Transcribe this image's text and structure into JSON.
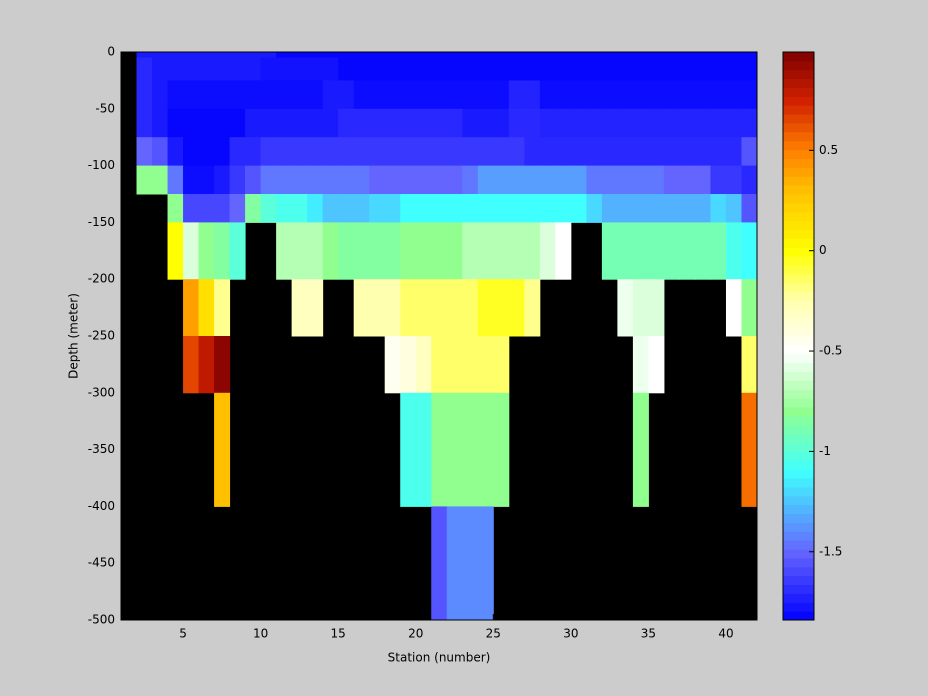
{
  "chart_data": {
    "type": "heatmap",
    "xlabel": "Station (number)",
    "ylabel": "Depth (meter)",
    "xlim": [
      1,
      42
    ],
    "ylim": [
      -500,
      0
    ],
    "xticks": [
      5,
      10,
      15,
      20,
      25,
      30,
      35,
      40
    ],
    "yticks": [
      0,
      -50,
      -100,
      -150,
      -200,
      -250,
      -300,
      -350,
      -400,
      -450,
      -500
    ],
    "x_edges": [
      2,
      3,
      4,
      5,
      6,
      7,
      8,
      9,
      10,
      11,
      12,
      13,
      14,
      15,
      16,
      17,
      18,
      19,
      20,
      21,
      22,
      23,
      24,
      25,
      26,
      27,
      28,
      29,
      30,
      31,
      32,
      33,
      34,
      35,
      36,
      37,
      38,
      39,
      40,
      41,
      42
    ],
    "y_edges": [
      0,
      -5,
      -25,
      -50,
      -75,
      -100,
      -125,
      -150,
      -200,
      -250,
      -300,
      -400,
      -500
    ],
    "background": "#000000",
    "clim": [
      -1.84,
      0.99
    ],
    "colorbar_ticks": [
      0.5,
      0,
      -0.5,
      -1,
      -1.5
    ],
    "colormap": [
      {
        "value": -1.84,
        "color": "#0000ff"
      },
      {
        "value": -1.5,
        "color": "#6464ff"
      },
      {
        "value": -1.1,
        "color": "#40ffff"
      },
      {
        "value": -0.8,
        "color": "#90ff90"
      },
      {
        "value": -0.5,
        "color": "#ffffff"
      },
      {
        "value": -0.25,
        "color": "#ffffb0"
      },
      {
        "value": 0,
        "color": "#ffff00"
      },
      {
        "value": 0.3,
        "color": "#ffc000"
      },
      {
        "value": 0.5,
        "color": "#ff8000"
      },
      {
        "value": 0.75,
        "color": "#d02000"
      },
      {
        "value": 0.99,
        "color": "#800000"
      }
    ],
    "values": [
      [
        -1.75,
        -1.75,
        -1.75,
        -1.75,
        -1.75,
        -1.75,
        -1.75,
        -1.75,
        -1.75,
        -1.82,
        -1.82,
        -1.82,
        -1.82,
        -1.82,
        -1.82,
        -1.82,
        -1.82,
        -1.82,
        -1.82,
        -1.82,
        -1.82,
        -1.82,
        -1.82,
        -1.82,
        -1.82,
        -1.82,
        -1.82,
        -1.82,
        -1.82,
        -1.82,
        -1.82,
        -1.82,
        -1.82,
        -1.82,
        -1.82,
        -1.82,
        -1.82,
        -1.82,
        -1.82,
        -1.82
      ],
      [
        -1.7,
        -1.75,
        -1.75,
        -1.75,
        -1.75,
        -1.75,
        -1.75,
        -1.75,
        -1.78,
        -1.78,
        -1.78,
        -1.78,
        -1.78,
        -1.82,
        -1.82,
        -1.82,
        -1.82,
        -1.82,
        -1.82,
        -1.82,
        -1.82,
        -1.82,
        -1.82,
        -1.82,
        -1.82,
        -1.82,
        -1.82,
        -1.82,
        -1.82,
        -1.82,
        -1.82,
        -1.82,
        -1.82,
        -1.82,
        -1.82,
        -1.82,
        -1.82,
        -1.82,
        -1.82,
        -1.82
      ],
      [
        -1.7,
        -1.75,
        -1.8,
        -1.8,
        -1.8,
        -1.8,
        -1.8,
        -1.8,
        -1.8,
        -1.8,
        -1.8,
        -1.8,
        -1.75,
        -1.75,
        -1.8,
        -1.8,
        -1.8,
        -1.8,
        -1.8,
        -1.8,
        -1.8,
        -1.8,
        -1.8,
        -1.8,
        -1.72,
        -1.72,
        -1.8,
        -1.8,
        -1.8,
        -1.8,
        -1.8,
        -1.8,
        -1.8,
        -1.8,
        -1.8,
        -1.8,
        -1.8,
        -1.8,
        -1.8,
        -1.8
      ],
      [
        -1.7,
        -1.75,
        -1.82,
        -1.82,
        -1.82,
        -1.82,
        -1.82,
        -1.75,
        -1.75,
        -1.75,
        -1.75,
        -1.75,
        -1.75,
        -1.7,
        -1.7,
        -1.7,
        -1.7,
        -1.7,
        -1.7,
        -1.7,
        -1.7,
        -1.75,
        -1.75,
        -1.75,
        -1.7,
        -1.7,
        -1.72,
        -1.72,
        -1.72,
        -1.72,
        -1.72,
        -1.72,
        -1.72,
        -1.72,
        -1.72,
        -1.72,
        -1.72,
        -1.72,
        -1.72,
        -1.72
      ],
      [
        -1.5,
        -1.55,
        -1.75,
        -1.82,
        -1.82,
        -1.82,
        -1.7,
        -1.7,
        -1.65,
        -1.65,
        -1.65,
        -1.65,
        -1.65,
        -1.65,
        -1.65,
        -1.65,
        -1.65,
        -1.65,
        -1.65,
        -1.65,
        -1.65,
        -1.65,
        -1.65,
        -1.65,
        -1.65,
        -1.7,
        -1.7,
        -1.7,
        -1.7,
        -1.7,
        -1.7,
        -1.7,
        -1.7,
        -1.7,
        -1.7,
        -1.7,
        -1.7,
        -1.7,
        -1.7,
        -1.55
      ],
      [
        -0.8,
        -0.8,
        -1.45,
        -1.8,
        -1.8,
        -1.75,
        -1.65,
        -1.55,
        -1.45,
        -1.45,
        -1.45,
        -1.45,
        -1.45,
        -1.45,
        -1.45,
        -1.5,
        -1.5,
        -1.5,
        -1.5,
        -1.5,
        -1.5,
        -1.45,
        -1.35,
        -1.35,
        -1.35,
        -1.35,
        -1.35,
        -1.35,
        -1.35,
        -1.45,
        -1.45,
        -1.45,
        -1.45,
        -1.45,
        -1.5,
        -1.5,
        -1.5,
        -1.65,
        -1.65,
        -1.7
      ],
      [
        null,
        null,
        -0.8,
        -1.6,
        -1.6,
        -1.6,
        -1.5,
        -0.85,
        -1.0,
        -1.05,
        -1.05,
        -1.15,
        -1.25,
        -1.25,
        -1.25,
        -1.2,
        -1.2,
        -1.1,
        -1.1,
        -1.1,
        -1.1,
        -1.1,
        -1.1,
        -1.1,
        -1.1,
        -1.1,
        -1.1,
        -1.1,
        -1.1,
        -1.2,
        -1.3,
        -1.3,
        -1.3,
        -1.3,
        -1.3,
        -1.3,
        -1.3,
        -1.2,
        -1.25,
        -1.55
      ],
      [
        null,
        null,
        0.0,
        -0.6,
        -0.8,
        -0.85,
        -1.0,
        null,
        null,
        -0.7,
        -0.7,
        -0.7,
        -0.8,
        -0.85,
        -0.85,
        -0.85,
        -0.85,
        -0.8,
        -0.8,
        -0.8,
        -0.8,
        -0.7,
        -0.7,
        -0.7,
        -0.7,
        -0.7,
        -0.6,
        -0.5,
        null,
        null,
        -0.9,
        -0.9,
        -0.9,
        -0.9,
        -0.9,
        -0.9,
        -0.9,
        -0.9,
        -1.05,
        -1.1
      ],
      [
        null,
        null,
        null,
        0.4,
        0.15,
        -0.2,
        null,
        null,
        null,
        null,
        -0.3,
        -0.3,
        null,
        null,
        -0.25,
        -0.25,
        -0.25,
        -0.15,
        -0.15,
        -0.15,
        -0.15,
        -0.15,
        -0.05,
        -0.05,
        -0.05,
        -0.2,
        null,
        null,
        null,
        null,
        null,
        -0.55,
        -0.6,
        -0.6,
        null,
        null,
        null,
        null,
        -0.5,
        -0.8
      ],
      [
        null,
        null,
        null,
        0.65,
        0.8,
        0.95,
        null,
        null,
        null,
        null,
        null,
        null,
        null,
        null,
        null,
        null,
        -0.45,
        -0.4,
        -0.3,
        -0.15,
        -0.15,
        -0.15,
        -0.15,
        -0.15,
        null,
        null,
        null,
        null,
        null,
        null,
        null,
        null,
        -0.55,
        -0.5,
        null,
        null,
        null,
        null,
        null,
        -0.15
      ],
      [
        null,
        null,
        null,
        null,
        null,
        0.3,
        null,
        null,
        null,
        null,
        null,
        null,
        null,
        null,
        null,
        null,
        null,
        -1.05,
        -1.05,
        -0.8,
        -0.8,
        -0.8,
        -0.8,
        -0.8,
        null,
        null,
        null,
        null,
        null,
        null,
        null,
        null,
        -0.8,
        null,
        null,
        null,
        null,
        null,
        null,
        0.55
      ],
      [
        null,
        null,
        null,
        null,
        null,
        null,
        null,
        null,
        null,
        null,
        null,
        null,
        null,
        null,
        null,
        null,
        null,
        null,
        null,
        -1.55,
        -1.4,
        -1.4,
        -1.4,
        null,
        null,
        null,
        null,
        null,
        null,
        null,
        null,
        null,
        null,
        null,
        null,
        null,
        null,
        null,
        null,
        null
      ]
    ]
  }
}
